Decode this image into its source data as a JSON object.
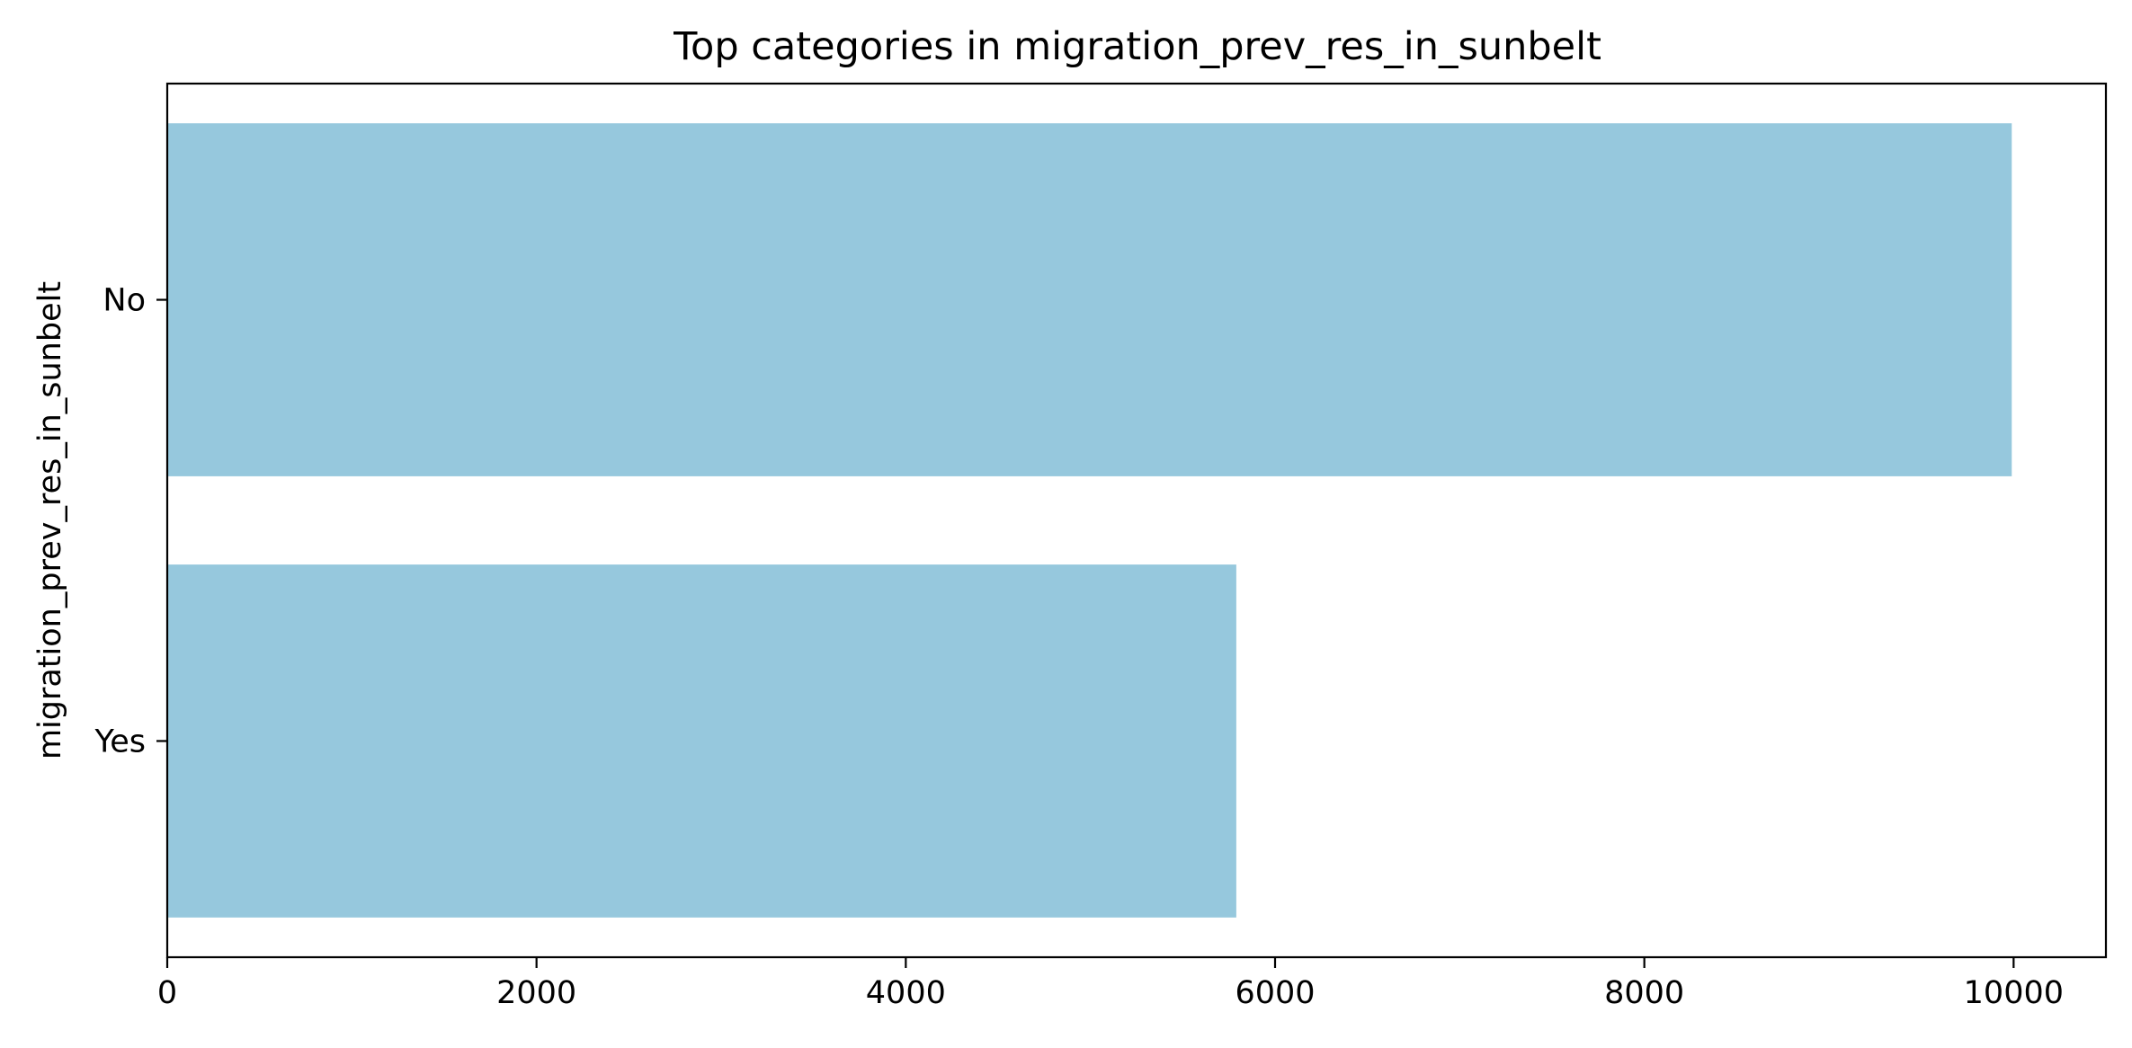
{
  "chart_data": {
    "type": "bar",
    "orientation": "horizontal",
    "title": "Top categories in migration_prev_res_in_sunbelt",
    "xlabel": "",
    "ylabel": "migration_prev_res_in_sunbelt",
    "categories": [
      "No",
      "Yes"
    ],
    "values": [
      9990,
      5790
    ],
    "xlim": [
      0,
      10500
    ],
    "xticks": [
      0,
      2000,
      4000,
      6000,
      8000,
      10000
    ],
    "xtick_labels": [
      "0",
      "2000",
      "4000",
      "6000",
      "8000",
      "10000"
    ],
    "grid": false,
    "legend": "none",
    "bar_color": "#96c8dd"
  }
}
